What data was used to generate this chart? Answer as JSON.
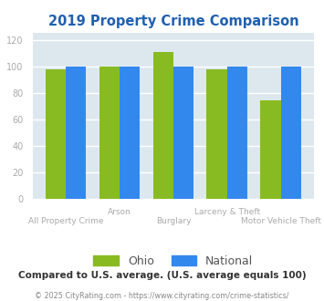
{
  "title": "2019 Property Crime Comparison",
  "title_color": "#2060b0",
  "categories": [
    "All Property Crime",
    "Arson",
    "Burglary",
    "Larceny & Theft",
    "Motor Vehicle Theft"
  ],
  "ohio_values": [
    98,
    100,
    111,
    98,
    74
  ],
  "national_values": [
    100,
    100,
    100,
    100,
    100
  ],
  "ohio_color": "#88bb22",
  "national_color": "#3388ee",
  "plot_bg_color": "#dde8ee",
  "fig_bg_color": "#ffffff",
  "ylim": [
    0,
    125
  ],
  "yticks": [
    0,
    20,
    40,
    60,
    80,
    100,
    120
  ],
  "bar_width": 0.38,
  "legend_labels": [
    "Ohio",
    "National"
  ],
  "footnote1": "Compared to U.S. average. (U.S. average equals 100)",
  "footnote2": "© 2025 CityRating.com - https://www.cityrating.com/crime-statistics/",
  "footnote1_color": "#333333",
  "footnote2_color": "#888888",
  "xlabel_color": "#aaaaaa",
  "grid_color": "#ffffff",
  "tick_color": "#aaaaaa",
  "row_upper": [
    1,
    3
  ],
  "row_lower": [
    0,
    2,
    4
  ]
}
